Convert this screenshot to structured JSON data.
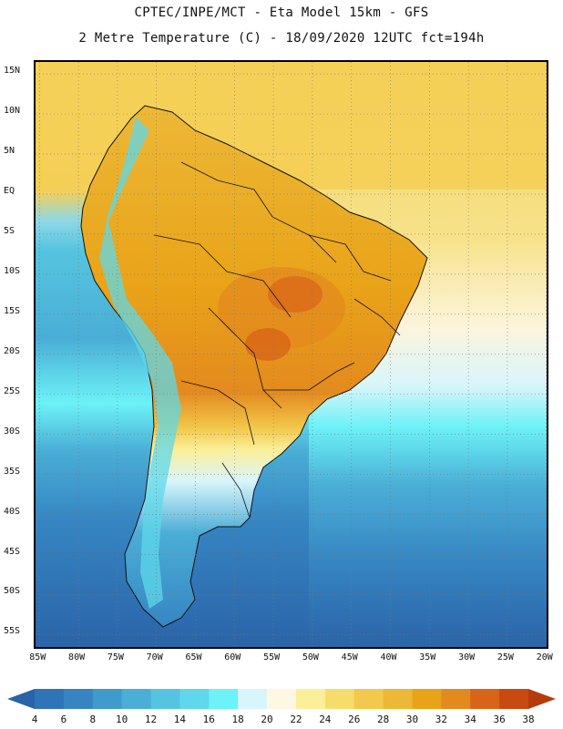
{
  "header": {
    "line1": "CPTEC/INPE/MCT -  Eta Model 15km - GFS",
    "line2": "2 Metre Temperature (C) - 18/09/2020 12UTC fct=194h"
  },
  "map": {
    "region": "South America",
    "lat_ticks": [
      "15N",
      "10N",
      "5N",
      "EQ",
      "5S",
      "10S",
      "15S",
      "20S",
      "25S",
      "30S",
      "35S",
      "40S",
      "45S",
      "50S",
      "55S"
    ],
    "lat_values": [
      15,
      10,
      5,
      0,
      -5,
      -10,
      -15,
      -20,
      -25,
      -30,
      -35,
      -40,
      -45,
      -50,
      -55
    ],
    "lon_ticks": [
      "85W",
      "80W",
      "75W",
      "70W",
      "65W",
      "60W",
      "55W",
      "50W",
      "45W",
      "40W",
      "35W",
      "30W",
      "25W",
      "20W"
    ],
    "lon_values": [
      -85,
      -80,
      -75,
      -70,
      -65,
      -60,
      -55,
      -50,
      -45,
      -40,
      -35,
      -30,
      -25,
      -20
    ],
    "lat_range": [
      -57,
      16.5
    ],
    "lon_range": [
      -85.5,
      -19.5
    ]
  },
  "colorbar": {
    "labels": [
      "4",
      "6",
      "8",
      "10",
      "12",
      "14",
      "16",
      "18",
      "20",
      "22",
      "24",
      "26",
      "28",
      "30",
      "32",
      "34",
      "36",
      "38"
    ],
    "colors": [
      "#2a63a8",
      "#2f74b6",
      "#3685c2",
      "#3f9bcd",
      "#4aaed6",
      "#55c4e0",
      "#5ed8ea",
      "#6cf2f7",
      "#d8f5fb",
      "#fdf8e4",
      "#fbef9a",
      "#f6dc6a",
      "#f2c94c",
      "#ecb836",
      "#e9a318",
      "#e38a1e",
      "#d86418",
      "#c84a10",
      "#b63a0a"
    ]
  }
}
